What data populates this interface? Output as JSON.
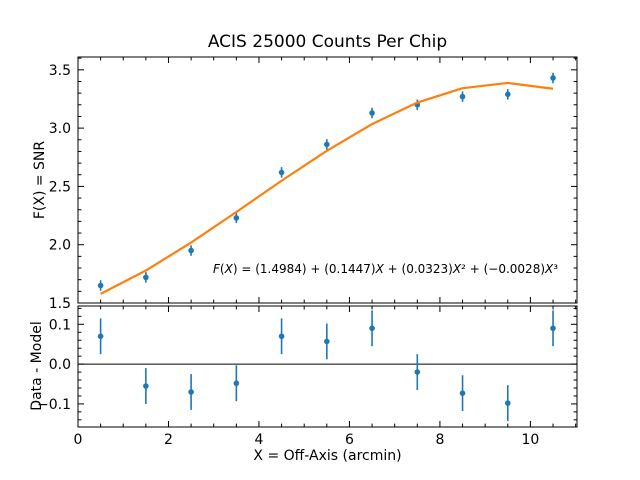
{
  "figure": {
    "background": "#ffffff",
    "axis_color": "#000000"
  },
  "chart_data": [
    {
      "type": "scatter",
      "name": "snr-curve",
      "title": "ACIS 25000 Counts Per Chip",
      "ylabel": "F(X) = SNR",
      "xlabel": "",
      "x": [
        0.5,
        1.5,
        2.5,
        3.5,
        4.5,
        5.5,
        6.5,
        7.5,
        8.5,
        9.5,
        10.5
      ],
      "y": [
        1.65,
        1.72,
        1.95,
        2.23,
        2.62,
        2.86,
        3.13,
        3.2,
        3.27,
        3.29,
        3.43
      ],
      "yerr": 0.045,
      "marker_color": "#1f77b4",
      "fit_line": {
        "type": "polynomial",
        "coefficients": [
          1.4984,
          0.1447,
          0.0323,
          -0.0028
        ],
        "color": "#ff7f0e",
        "equation_label": "F(X) = (1.4984) + (0.1447)X + (0.0323)X² + (−0.0028)X³"
      },
      "xlim": [
        0,
        11.03
      ],
      "ylim": [
        1.5,
        3.61
      ],
      "xticks": [
        0,
        2,
        4,
        6,
        8,
        10
      ],
      "xtick_labels": [
        "0",
        "2",
        "4",
        "6",
        "8",
        "10"
      ],
      "yticks": [
        1.5,
        2.0,
        2.5,
        3.0,
        3.5
      ],
      "ytick_labels": [
        "1.5",
        "2.0",
        "2.5",
        "3.0",
        "3.5"
      ],
      "x_minor_step": 0.5,
      "y_minor_step": 0.1,
      "grid": false,
      "legend": null
    },
    {
      "type": "scatter",
      "name": "residuals",
      "title": "",
      "ylabel": "Data - Model",
      "xlabel": "X = Off-Axis (arcmin)",
      "x": [
        0.5,
        1.5,
        2.5,
        3.5,
        4.5,
        5.5,
        6.5,
        7.5,
        8.5,
        9.5,
        10.5
      ],
      "y": [
        0.07,
        -0.055,
        -0.07,
        -0.048,
        0.07,
        0.057,
        0.09,
        -0.02,
        -0.073,
        -0.098,
        0.09
      ],
      "yerr": 0.045,
      "marker_color": "#1f77b4",
      "zero_line": true,
      "xlim": [
        0,
        11.03
      ],
      "ylim": [
        -0.158,
        0.146
      ],
      "xticks": [
        0,
        2,
        4,
        6,
        8,
        10
      ],
      "xtick_labels": [
        "0",
        "2",
        "4",
        "6",
        "8",
        "10"
      ],
      "yticks": [
        -0.1,
        0.0,
        0.1
      ],
      "ytick_labels": [
        "−0.1",
        "0.0",
        "0.1"
      ],
      "x_minor_step": 0.5,
      "y_minor_step": 0.02,
      "grid": false,
      "legend": null
    }
  ]
}
